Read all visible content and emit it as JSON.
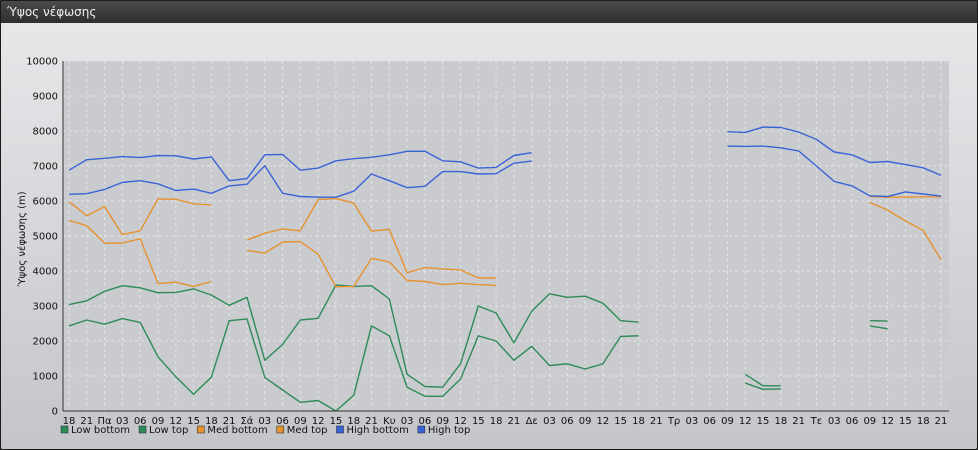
{
  "window": {
    "title": "Ύψος νέφωσης"
  },
  "chart_data": {
    "type": "line",
    "title": "",
    "xlabel": "",
    "ylabel": "Ύψος νέφωσης (m)",
    "ylim": [
      0,
      10000
    ],
    "yticks": [
      0,
      1000,
      2000,
      3000,
      4000,
      5000,
      6000,
      7000,
      8000,
      9000,
      10000
    ],
    "grid": true,
    "legend_position": "bottom-left",
    "categories": [
      "18",
      "21",
      "Πα",
      "03",
      "06",
      "09",
      "12",
      "15",
      "18",
      "21",
      "Σά",
      "03",
      "06",
      "09",
      "12",
      "15",
      "18",
      "21",
      "Κυ",
      "03",
      "06",
      "09",
      "12",
      "15",
      "18",
      "21",
      "Δε",
      "03",
      "06",
      "09",
      "12",
      "15",
      "18",
      "21",
      "Τρ",
      "03",
      "06",
      "09",
      "12",
      "15",
      "18",
      "21",
      "Τε",
      "03",
      "06",
      "09",
      "12",
      "15",
      "18",
      "21"
    ],
    "series": [
      {
        "name": "Low bottom",
        "color": "#2e8b57",
        "values": [
          2430,
          2600,
          2480,
          2640,
          2530,
          1550,
          980,
          480,
          970,
          2580,
          2630,
          960,
          600,
          250,
          300,
          0,
          450,
          2430,
          2150,
          680,
          420,
          420,
          910,
          2150,
          2000,
          1450,
          1850,
          1300,
          1350,
          1200,
          1350,
          2130,
          2150,
          null,
          null,
          null,
          null,
          null,
          800,
          620,
          630,
          null,
          null,
          null,
          null,
          2430,
          2350,
          null,
          null,
          null
        ]
      },
      {
        "name": "Low top",
        "color": "#2e8b57",
        "values": [
          3040,
          3150,
          3420,
          3580,
          3520,
          3380,
          3390,
          3490,
          3310,
          3020,
          3250,
          1450,
          1900,
          2600,
          2650,
          3600,
          3560,
          3580,
          3200,
          1050,
          700,
          680,
          1350,
          3000,
          2800,
          1950,
          2850,
          3350,
          3250,
          3280,
          3080,
          2580,
          2540,
          null,
          null,
          null,
          null,
          null,
          1050,
          720,
          720,
          null,
          null,
          null,
          null,
          2580,
          2570,
          null,
          null,
          null
        ]
      },
      {
        "name": "Med bottom",
        "color": "#e6922e",
        "values": [
          5450,
          5290,
          4790,
          4800,
          4920,
          3640,
          3680,
          3560,
          3700,
          null,
          4590,
          4510,
          4830,
          4840,
          4480,
          3550,
          3560,
          4360,
          4260,
          3730,
          3700,
          3610,
          3650,
          3610,
          3590,
          null,
          null,
          null,
          null,
          null,
          null,
          null,
          null,
          null,
          null,
          null,
          null,
          null,
          null,
          null,
          null,
          null,
          null,
          null,
          null,
          5960,
          5740,
          5430,
          5160,
          4320
        ]
      },
      {
        "name": "Med top",
        "color": "#e6922e",
        "values": [
          5980,
          5580,
          5840,
          5040,
          5150,
          6060,
          6050,
          5920,
          5890,
          null,
          4880,
          5080,
          5200,
          5150,
          6040,
          6070,
          5940,
          5140,
          5190,
          3950,
          4100,
          4060,
          4030,
          3800,
          3800,
          null,
          null,
          null,
          null,
          null,
          null,
          null,
          null,
          null,
          null,
          null,
          null,
          null,
          null,
          null,
          null,
          null,
          null,
          null,
          null,
          6130,
          6110,
          6110,
          6120,
          6120
        ]
      },
      {
        "name": "High bottom",
        "color": "#3a63d6",
        "values": [
          6190,
          6210,
          6330,
          6530,
          6580,
          6490,
          6300,
          6340,
          6220,
          6430,
          6480,
          7010,
          6220,
          6130,
          6110,
          6110,
          6280,
          6770,
          6580,
          6380,
          6420,
          6840,
          6840,
          6770,
          6780,
          7080,
          7140,
          null,
          null,
          null,
          null,
          null,
          null,
          null,
          null,
          null,
          null,
          7570,
          7560,
          7570,
          7520,
          7430,
          7000,
          6560,
          6430,
          6150,
          6130,
          6260,
          6200,
          6140
        ]
      },
      {
        "name": "High top",
        "color": "#3a63d6",
        "values": [
          6880,
          7180,
          7220,
          7270,
          7240,
          7300,
          7290,
          7200,
          7260,
          6580,
          6640,
          7320,
          7330,
          6880,
          6940,
          7150,
          7210,
          7250,
          7320,
          7420,
          7420,
          7150,
          7120,
          6940,
          6960,
          7300,
          7380,
          null,
          null,
          null,
          null,
          null,
          null,
          null,
          null,
          null,
          null,
          7980,
          7960,
          8110,
          8100,
          7970,
          7760,
          7400,
          7320,
          7100,
          7130,
          7040,
          6950,
          6730
        ]
      }
    ]
  }
}
